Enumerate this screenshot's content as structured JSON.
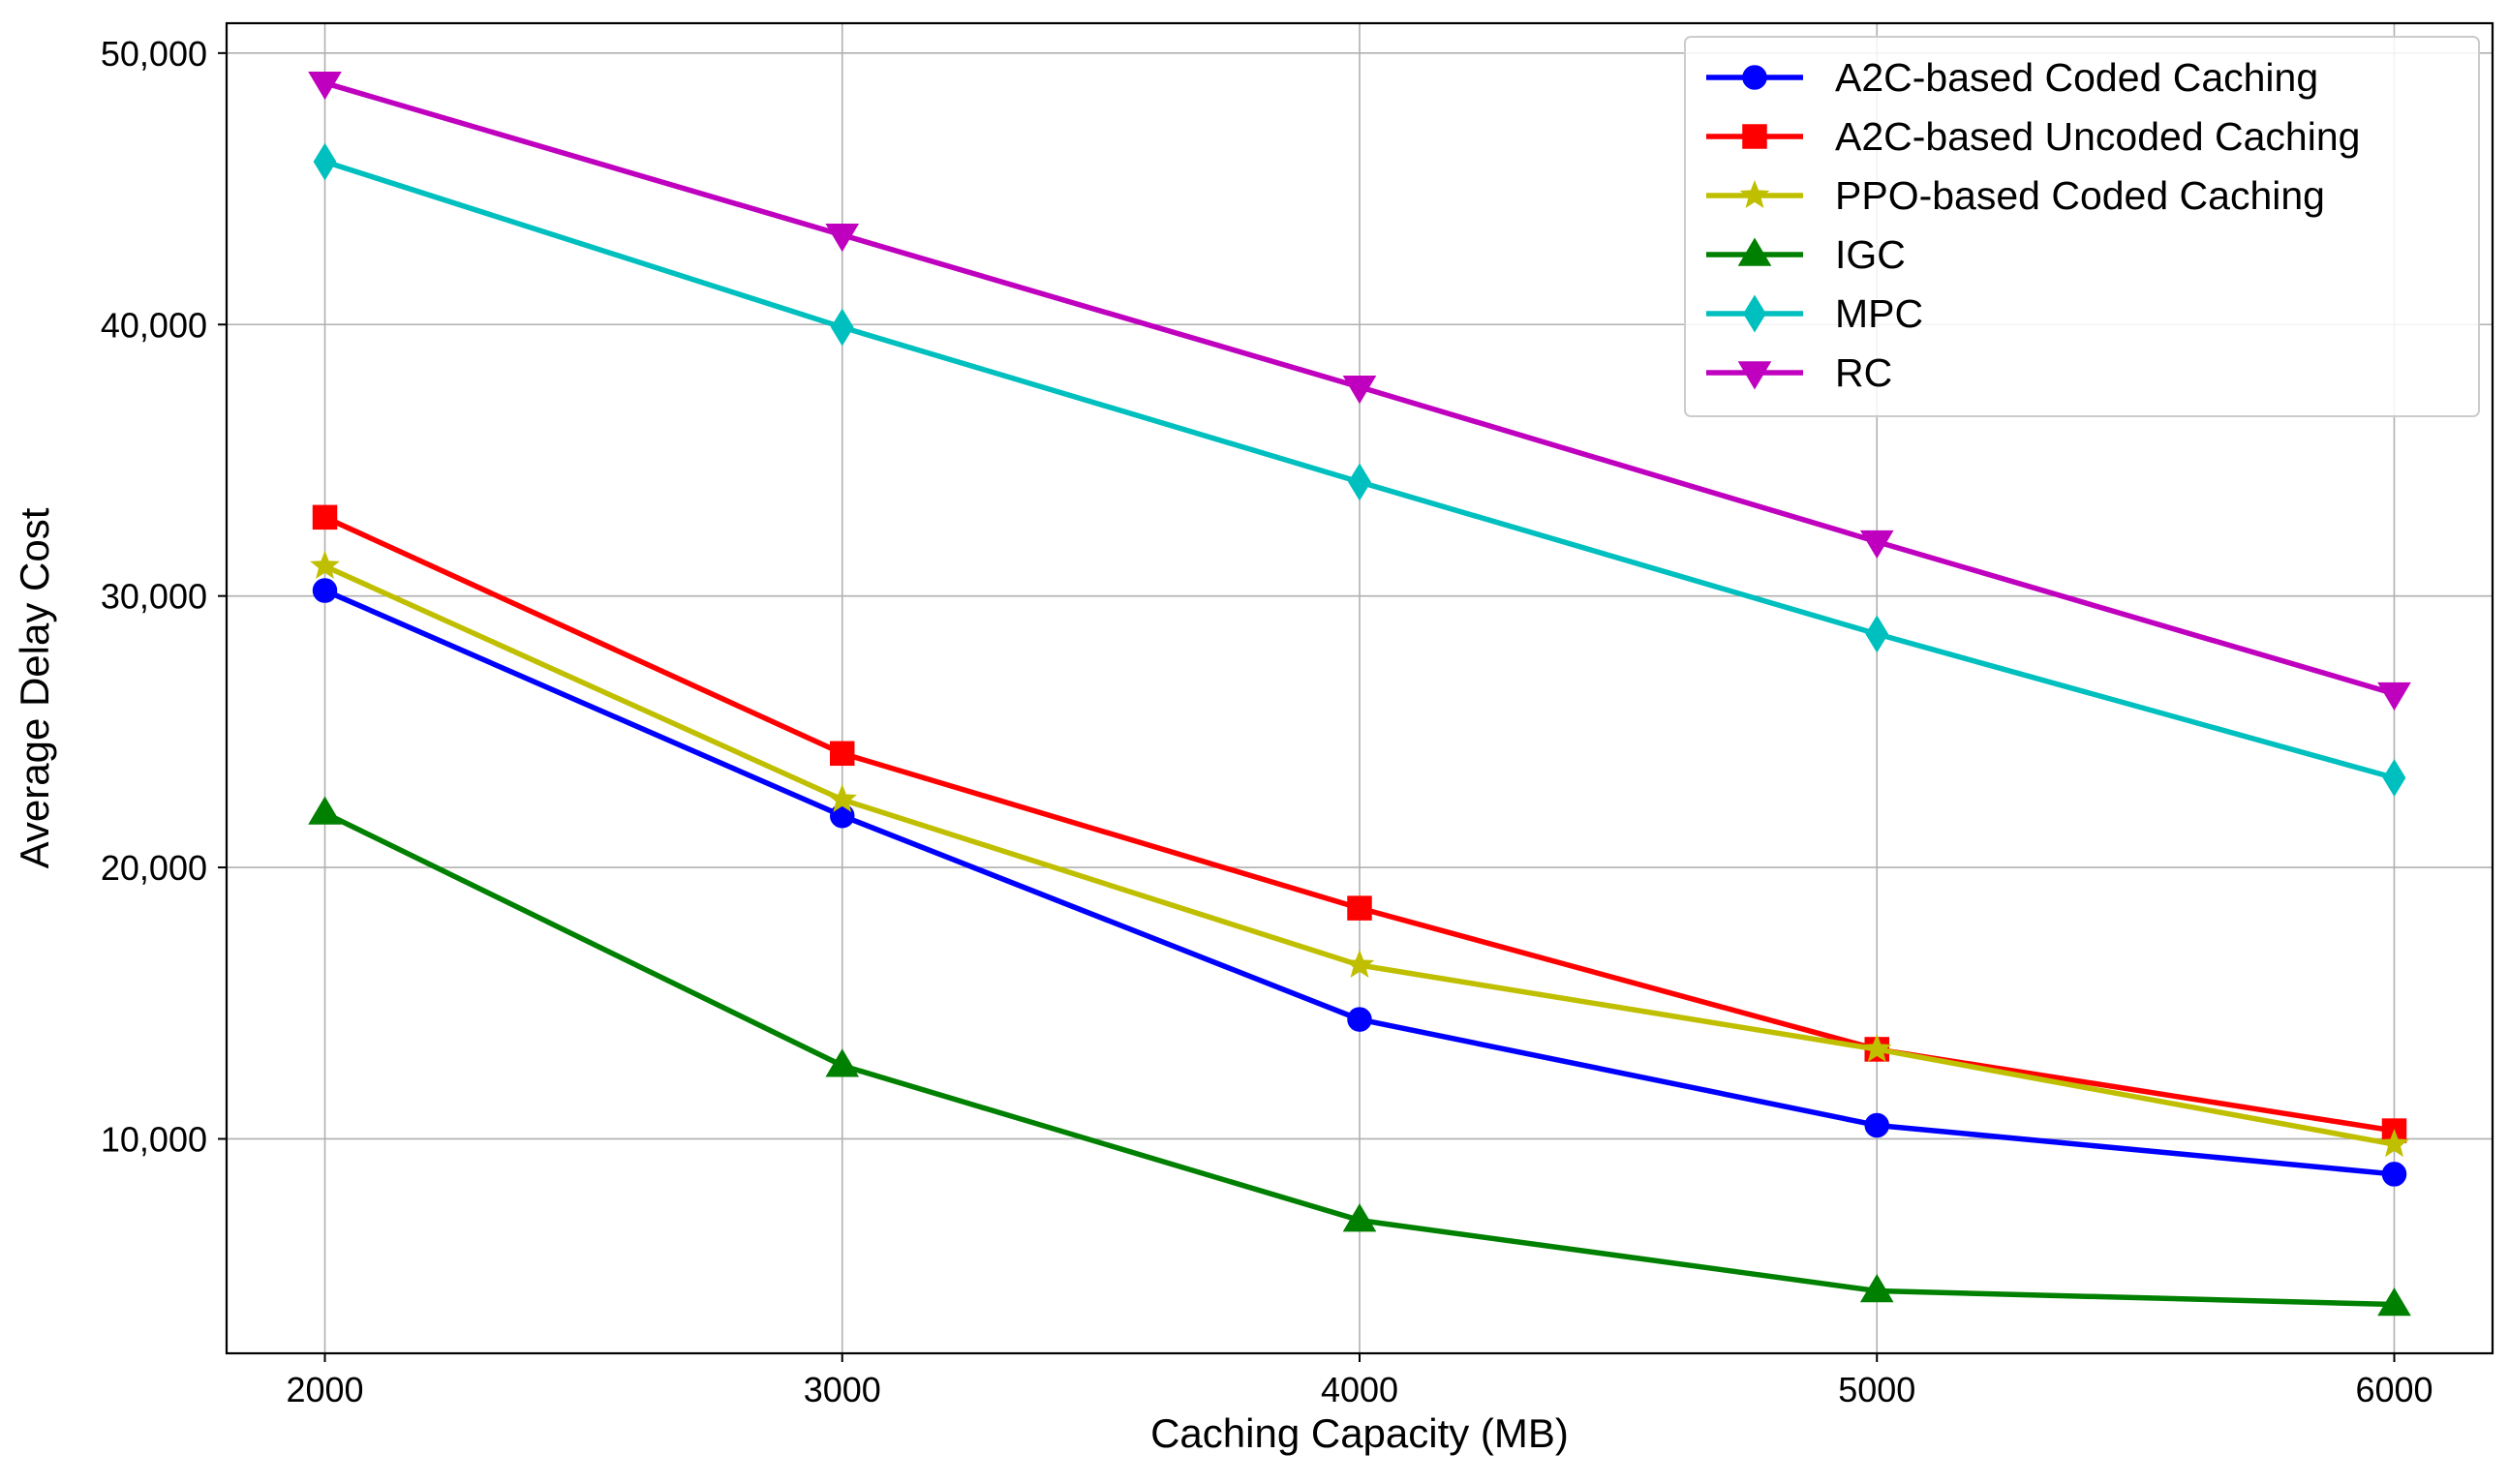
{
  "chart_data": {
    "type": "line",
    "title": "",
    "xlabel": "Caching Capacity (MB)",
    "ylabel": "Average Delay Cost",
    "x": [
      2000,
      3000,
      4000,
      5000,
      6000
    ],
    "xlim": [
      1810,
      6190
    ],
    "ylim": [
      2100,
      51100
    ],
    "x_ticks": [
      "2000",
      "3000",
      "4000",
      "5000",
      "6000"
    ],
    "y_ticks": [
      {
        "value": 10000,
        "label": "10,000"
      },
      {
        "value": 20000,
        "label": "20,000"
      },
      {
        "value": 30000,
        "label": "30,000"
      },
      {
        "value": 40000,
        "label": "40,000"
      },
      {
        "value": 50000,
        "label": "50,000"
      }
    ],
    "grid": true,
    "legend_position": "top-right",
    "series": [
      {
        "name": "A2C-based Coded Caching",
        "color": "#0000ff",
        "marker": "circle",
        "values": [
          30200,
          21900,
          14400,
          10500,
          8700
        ]
      },
      {
        "name": "A2C-based Uncoded Caching",
        "color": "#ff0000",
        "marker": "square",
        "values": [
          32900,
          24200,
          18500,
          13300,
          10300
        ]
      },
      {
        "name": "PPO-based Coded Caching",
        "color": "#bfbf00",
        "marker": "star",
        "values": [
          31100,
          22500,
          16400,
          13300,
          9800
        ]
      },
      {
        "name": "IGC",
        "color": "#008000",
        "marker": "triangle-up",
        "values": [
          22000,
          12700,
          7000,
          4400,
          3900
        ]
      },
      {
        "name": "MPC",
        "color": "#00bfbf",
        "marker": "diamond",
        "values": [
          46000,
          39900,
          34200,
          28600,
          23300
        ]
      },
      {
        "name": "RC",
        "color": "#bf00bf",
        "marker": "triangle-down",
        "values": [
          48900,
          43300,
          37700,
          32000,
          26400
        ]
      }
    ]
  }
}
